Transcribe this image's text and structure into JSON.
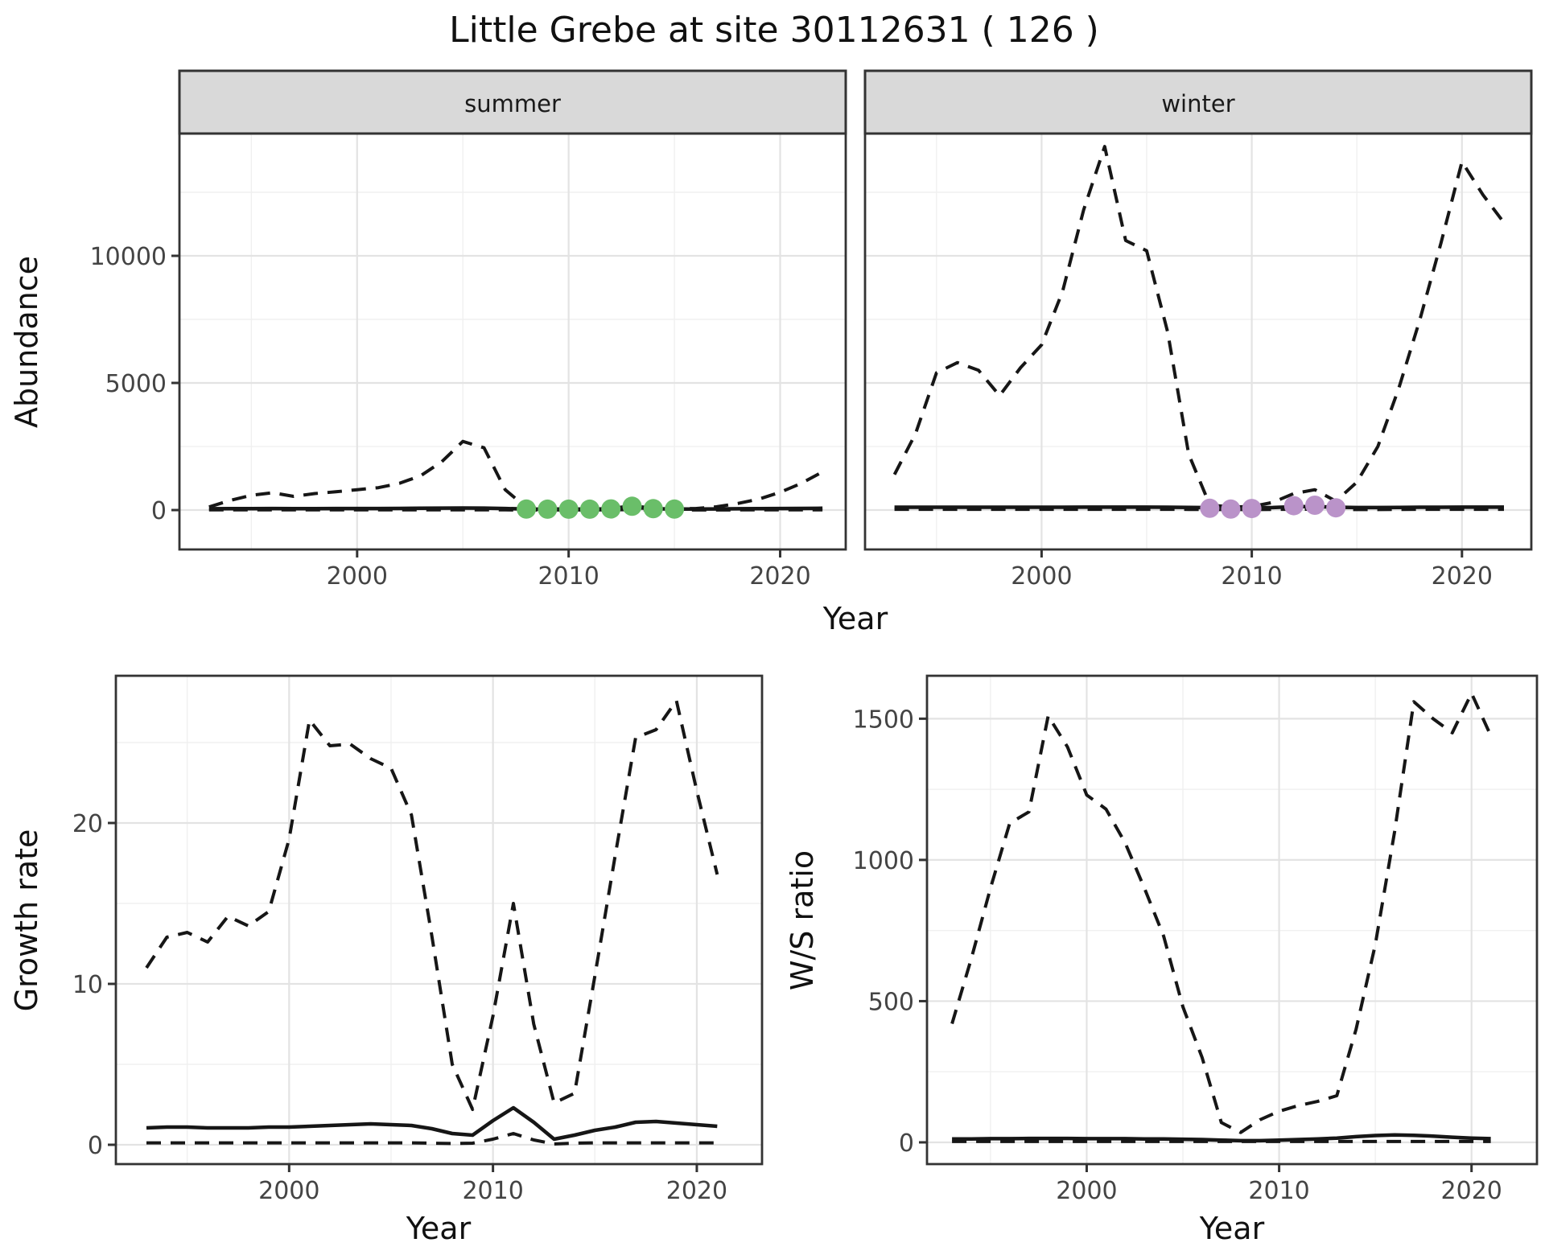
{
  "title": "Little Grebe at site 30112631 ( 126 )",
  "top_row": {
    "ylabel": "Abundance",
    "xlabel": "Year",
    "facets": [
      "summer",
      "winter"
    ]
  },
  "bottom_row": {
    "left_ylabel": "Growth rate",
    "left_xlabel": "Year",
    "right_ylabel": "W/S ratio",
    "right_xlabel": "Year"
  },
  "colors": {
    "line": "#161616",
    "grid_major": "#e3e3e3",
    "grid_minor": "#f0f0f0",
    "panel_border": "#333333",
    "strip_bg": "#d9d9d9",
    "tick_text": "#444444",
    "summer_point": "#6abe69",
    "winter_point": "#ba93c9"
  },
  "chart_data": [
    {
      "id": "abundance-summer",
      "type": "line",
      "facet": "summer",
      "xlabel": "Year",
      "ylabel": "Abundance",
      "x_axis": {
        "major": [
          2000,
          2010,
          2020
        ],
        "minor": [
          1995,
          2005,
          2015
        ],
        "labels": [
          "2000",
          "2010",
          "2020"
        ],
        "range": [
          1991.6,
          2023.1
        ]
      },
      "y_axis": {
        "major": [
          0,
          5000,
          10000
        ],
        "minor": [
          2500,
          7500,
          12500
        ],
        "labels": [
          "0",
          "5000",
          "10000"
        ],
        "range": [
          -1550,
          14810
        ]
      },
      "x": [
        1993,
        1994,
        1995,
        1996,
        1997,
        1998,
        1999,
        2000,
        2001,
        2002,
        2003,
        2004,
        2005,
        2006,
        2007,
        2008,
        2009,
        2010,
        2011,
        2012,
        2013,
        2014,
        2015,
        2016,
        2017,
        2018,
        2019,
        2020,
        2021,
        2022
      ],
      "series": [
        {
          "name": "upper-ci",
          "style": "dashed",
          "values": [
            120,
            380,
            580,
            680,
            540,
            650,
            720,
            800,
            880,
            1050,
            1350,
            1900,
            2700,
            2450,
            800,
            100,
            50,
            40,
            40,
            60,
            170,
            70,
            50,
            60,
            130,
            260,
            430,
            700,
            1050,
            1500
          ]
        },
        {
          "name": "mean",
          "style": "solid",
          "values": [
            50,
            55,
            55,
            60,
            55,
            55,
            60,
            60,
            60,
            65,
            70,
            75,
            80,
            75,
            60,
            40,
            35,
            35,
            35,
            45,
            110,
            50,
            40,
            40,
            45,
            50,
            55,
            60,
            65,
            70
          ]
        },
        {
          "name": "lower-ci",
          "style": "dashed",
          "values": [
            10,
            10,
            10,
            10,
            10,
            10,
            10,
            10,
            10,
            10,
            10,
            10,
            10,
            10,
            8,
            5,
            5,
            5,
            5,
            8,
            15,
            8,
            5,
            5,
            5,
            8,
            8,
            10,
            10,
            10
          ]
        }
      ],
      "points": {
        "name": "observed-counts",
        "color": "#6abe69",
        "x": [
          2008,
          2009,
          2010,
          2011,
          2012,
          2013,
          2014,
          2015
        ],
        "y": [
          40,
          35,
          35,
          35,
          45,
          150,
          55,
          40
        ]
      }
    },
    {
      "id": "abundance-winter",
      "type": "line",
      "facet": "winter",
      "xlabel": "Year",
      "ylabel": "Abundance",
      "x_axis": {
        "major": [
          2000,
          2010,
          2020
        ],
        "minor": [
          1995,
          2005,
          2015
        ],
        "labels": [
          "2000",
          "2010",
          "2020"
        ],
        "range": [
          1991.6,
          2023.3
        ]
      },
      "y_axis": {
        "major": [
          0,
          5000,
          10000
        ],
        "minor": [
          2500,
          7500,
          12500
        ],
        "labels": [
          "0",
          "5000",
          "10000"
        ],
        "range": [
          -1550,
          14810
        ]
      },
      "x": [
        1993,
        1994,
        1995,
        1996,
        1997,
        1998,
        1999,
        2000,
        2001,
        2002,
        2003,
        2004,
        2005,
        2006,
        2007,
        2008,
        2009,
        2010,
        2011,
        2012,
        2013,
        2014,
        2015,
        2016,
        2017,
        2018,
        2019,
        2020,
        2021,
        2022
      ],
      "series": [
        {
          "name": "upper-ci",
          "style": "dashed",
          "values": [
            1400,
            3000,
            5400,
            5800,
            5500,
            4500,
            5600,
            6500,
            8600,
            11800,
            14300,
            10600,
            10200,
            7000,
            2200,
            200,
            120,
            140,
            300,
            650,
            800,
            350,
            1100,
            2500,
            4800,
            7500,
            10500,
            13700,
            12400,
            11300
          ]
        },
        {
          "name": "mean",
          "style": "solid",
          "values": [
            110,
            110,
            110,
            110,
            110,
            110,
            110,
            110,
            110,
            115,
            115,
            115,
            115,
            110,
            105,
            95,
            90,
            90,
            100,
            130,
            140,
            110,
            100,
            100,
            105,
            110,
            110,
            115,
            115,
            115
          ]
        },
        {
          "name": "lower-ci",
          "style": "dashed",
          "values": [
            30,
            30,
            30,
            30,
            30,
            30,
            30,
            30,
            30,
            30,
            30,
            30,
            30,
            30,
            25,
            20,
            20,
            20,
            25,
            30,
            35,
            25,
            20,
            20,
            25,
            30,
            30,
            30,
            30,
            30
          ]
        }
      ],
      "points": {
        "name": "observed-counts",
        "color": "#ba93c9",
        "x": [
          2008,
          2009,
          2010,
          2012,
          2013,
          2014
        ],
        "y": [
          70,
          40,
          60,
          170,
          190,
          90
        ]
      }
    },
    {
      "id": "growth-rate",
      "type": "line",
      "xlabel": "Year",
      "ylabel": "Growth rate",
      "x_axis": {
        "major": [
          2000,
          2010,
          2020
        ],
        "minor": [
          1995,
          2005,
          2015
        ],
        "labels": [
          "2000",
          "2010",
          "2020"
        ],
        "range": [
          1991.5,
          2023.2
        ]
      },
      "y_axis": {
        "major": [
          0,
          10,
          20
        ],
        "minor": [
          5,
          15,
          25
        ],
        "labels": [
          "0",
          "10",
          "20"
        ],
        "range": [
          -1.2,
          29.15
        ]
      },
      "x": [
        1993,
        1994,
        1995,
        1996,
        1997,
        1998,
        1999,
        2000,
        2001,
        2002,
        2003,
        2004,
        2005,
        2006,
        2007,
        2008,
        2009,
        2010,
        2011,
        2012,
        2013,
        2014,
        2015,
        2016,
        2017,
        2018,
        2019,
        2020,
        2021
      ],
      "series": [
        {
          "name": "upper-ci",
          "style": "dashed",
          "values": [
            11.0,
            12.9,
            13.2,
            12.6,
            14.2,
            13.6,
            14.5,
            19.0,
            26.4,
            24.8,
            24.9,
            24.0,
            23.4,
            20.5,
            13.0,
            5.0,
            2.2,
            8.0,
            15.0,
            7.5,
            2.6,
            3.2,
            10.5,
            18.0,
            25.3,
            25.8,
            27.6,
            22.0,
            16.8
          ]
        },
        {
          "name": "mean",
          "style": "solid",
          "values": [
            1.05,
            1.1,
            1.1,
            1.05,
            1.05,
            1.05,
            1.1,
            1.1,
            1.15,
            1.2,
            1.25,
            1.3,
            1.25,
            1.2,
            1.0,
            0.7,
            0.6,
            1.5,
            2.3,
            1.4,
            0.35,
            0.6,
            0.9,
            1.1,
            1.4,
            1.45,
            1.35,
            1.25,
            1.15
          ]
        },
        {
          "name": "lower-ci",
          "style": "dashed",
          "values": [
            0.12,
            0.12,
            0.12,
            0.12,
            0.12,
            0.12,
            0.12,
            0.12,
            0.12,
            0.12,
            0.12,
            0.12,
            0.12,
            0.12,
            0.1,
            0.08,
            0.1,
            0.35,
            0.7,
            0.3,
            0.05,
            0.1,
            0.12,
            0.12,
            0.12,
            0.12,
            0.12,
            0.12,
            0.12
          ]
        }
      ]
    },
    {
      "id": "ws-ratio",
      "type": "line",
      "xlabel": "Year",
      "ylabel": "W/S ratio",
      "x_axis": {
        "major": [
          2000,
          2010,
          2020
        ],
        "minor": [
          1995,
          2005,
          2015
        ],
        "labels": [
          "2000",
          "2010",
          "2020"
        ],
        "range": [
          1991.7,
          2023.4
        ]
      },
      "y_axis": {
        "major": [
          0,
          500,
          1000,
          1500
        ],
        "minor": [
          250,
          750,
          1250
        ],
        "labels": [
          "0",
          "500",
          "1000",
          "1500"
        ],
        "range": [
          -77,
          1652
        ]
      },
      "x": [
        1993,
        1994,
        1995,
        1996,
        1997,
        1998,
        1999,
        2000,
        2001,
        2002,
        2003,
        2004,
        2005,
        2006,
        2007,
        2008,
        2009,
        2010,
        2011,
        2012,
        2013,
        2014,
        2015,
        2016,
        2017,
        2018,
        2019,
        2020,
        2021
      ],
      "series": [
        {
          "name": "upper-ci",
          "style": "dashed",
          "values": [
            420,
            650,
            900,
            1130,
            1170,
            1510,
            1400,
            1230,
            1180,
            1060,
            900,
            730,
            480,
            300,
            70,
            35,
            80,
            110,
            130,
            145,
            165,
            400,
            700,
            1100,
            1560,
            1500,
            1450,
            1590,
            1440
          ]
        },
        {
          "name": "mean",
          "style": "solid",
          "values": [
            12,
            12,
            13,
            13,
            14,
            14,
            14,
            13,
            13,
            13,
            12,
            12,
            11,
            10,
            8,
            6,
            6,
            8,
            10,
            12,
            15,
            20,
            24,
            26,
            25,
            22,
            18,
            15,
            13
          ]
        },
        {
          "name": "lower-ci",
          "style": "dashed",
          "values": [
            3,
            3,
            3,
            3,
            3,
            3,
            3,
            3,
            3,
            3,
            3,
            3,
            3,
            3,
            3,
            3,
            3,
            3,
            3,
            3,
            3,
            3,
            3,
            3,
            3,
            3,
            3,
            3,
            3
          ]
        }
      ]
    }
  ]
}
